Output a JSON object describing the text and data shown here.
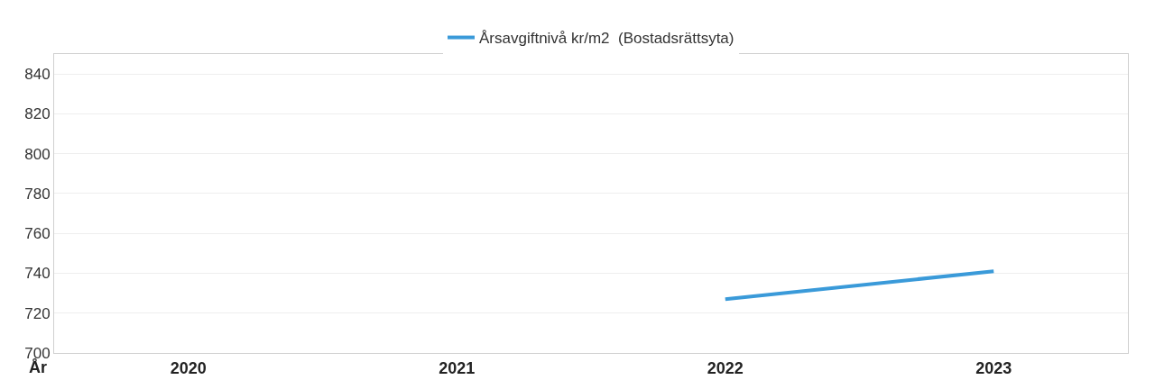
{
  "chart_data": {
    "type": "line",
    "xlabel": "År",
    "categories": [
      "2020",
      "2021",
      "2022",
      "2023"
    ],
    "series": [
      {
        "name": "Årsavgiftnivå kr/m2  (Bostadsrättsyta)",
        "color": "#3a9ad9",
        "values": [
          null,
          null,
          727,
          741
        ]
      }
    ],
    "ylim": [
      700,
      850
    ],
    "yticks": [
      700,
      720,
      740,
      760,
      780,
      800,
      820,
      840
    ],
    "grid": "y",
    "legend": "top",
    "marker": "none",
    "line_style": "solid"
  }
}
